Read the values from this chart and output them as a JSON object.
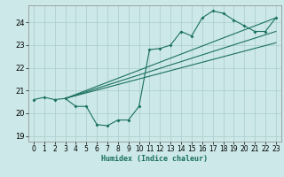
{
  "xlabel": "Humidex (Indice chaleur)",
  "xlim": [
    -0.5,
    23.5
  ],
  "ylim": [
    18.75,
    24.75
  ],
  "yticks": [
    19,
    20,
    21,
    22,
    23,
    24
  ],
  "xticks": [
    0,
    1,
    2,
    3,
    4,
    5,
    6,
    7,
    8,
    9,
    10,
    11,
    12,
    13,
    14,
    15,
    16,
    17,
    18,
    19,
    20,
    21,
    22,
    23
  ],
  "bg": "#cce8e8",
  "grid_color": "#aacccc",
  "lc": "#1a7060",
  "line1_x": [
    0,
    1,
    2,
    3,
    4,
    5,
    6,
    7,
    8,
    9,
    10,
    11,
    12,
    13,
    14,
    15,
    16,
    17,
    18,
    19,
    20,
    21,
    22,
    23
  ],
  "line1_y": [
    20.6,
    20.7,
    20.6,
    20.65,
    20.3,
    20.3,
    19.5,
    19.45,
    19.7,
    19.7,
    20.3,
    22.8,
    22.85,
    23.0,
    23.6,
    23.4,
    24.2,
    24.5,
    24.4,
    24.1,
    23.85,
    23.6,
    23.6,
    24.2
  ],
  "line2_x": [
    3,
    23
  ],
  "line2_y": [
    20.65,
    24.2
  ],
  "line3_x": [
    3,
    23
  ],
  "line3_y": [
    20.65,
    23.6
  ],
  "line4_x": [
    3,
    23
  ],
  "line4_y": [
    20.65,
    23.1
  ]
}
